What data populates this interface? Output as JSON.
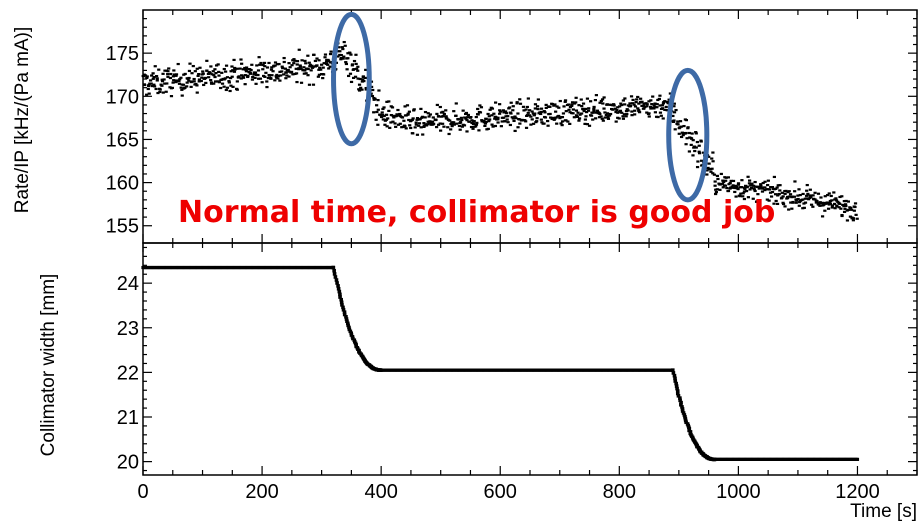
{
  "chart_data": [
    {
      "type": "scatter",
      "panel": "top",
      "ylabel": "Rate/IP [kHz/(Pa mA)]",
      "xlim": [
        0,
        1300
      ],
      "ylim": [
        153,
        180
      ],
      "yticks": [
        155,
        160,
        165,
        170,
        175
      ],
      "grid": false,
      "annotation": "Normal time, collimator is good job",
      "highlights": [
        {
          "x": 350,
          "y": 172,
          "rx": 30,
          "ry": 7.5,
          "color": "#3e6aa6"
        },
        {
          "x": 915,
          "y": 165.5,
          "rx": 32,
          "ry": 7.5,
          "color": "#3e6aa6"
        }
      ],
      "series": [
        {
          "segments": [
            {
              "x": [
                0,
                300
              ],
              "y": [
                171.5,
                173.5
              ],
              "noise": 1.6
            },
            {
              "x": [
                300,
                340
              ],
              "y": [
                173.5,
                175.0
              ],
              "noise": 1.8
            },
            {
              "x": [
                340,
                400
              ],
              "y": [
                175.0,
                168.0
              ],
              "noise": 2.0
            },
            {
              "x": [
                400,
                470
              ],
              "y": [
                168.0,
                166.5
              ],
              "noise": 1.6
            },
            {
              "x": [
                470,
                880
              ],
              "y": [
                167.0,
                169.0
              ],
              "noise": 1.5
            },
            {
              "x": [
                880,
                960
              ],
              "y": [
                169.0,
                161.0
              ],
              "noise": 2.0
            },
            {
              "x": [
                960,
                1200
              ],
              "y": [
                160.0,
                157.0
              ],
              "noise": 1.3
            }
          ]
        }
      ]
    },
    {
      "type": "scatter",
      "panel": "bottom",
      "xlabel": "Time [s]",
      "ylabel": "Collimator width [mm]",
      "xlim": [
        0,
        1300
      ],
      "ylim": [
        19.7,
        24.9
      ],
      "xticks": [
        0,
        200,
        400,
        600,
        800,
        1000,
        1200
      ],
      "yticks": [
        20,
        21,
        22,
        23,
        24
      ],
      "grid": false,
      "series": [
        {
          "plateaus": [
            {
              "x": [
                0,
                320
              ],
              "y": 24.35
            },
            {
              "x": [
                400,
                890
              ],
              "y": 22.05
            },
            {
              "x": [
                960,
                1200
              ],
              "y": 20.05
            }
          ],
          "transitions": [
            {
              "x": [
                320,
                400
              ],
              "y": [
                24.35,
                22.05
              ]
            },
            {
              "x": [
                890,
                960
              ],
              "y": [
                22.05,
                20.05
              ]
            }
          ]
        }
      ]
    }
  ]
}
